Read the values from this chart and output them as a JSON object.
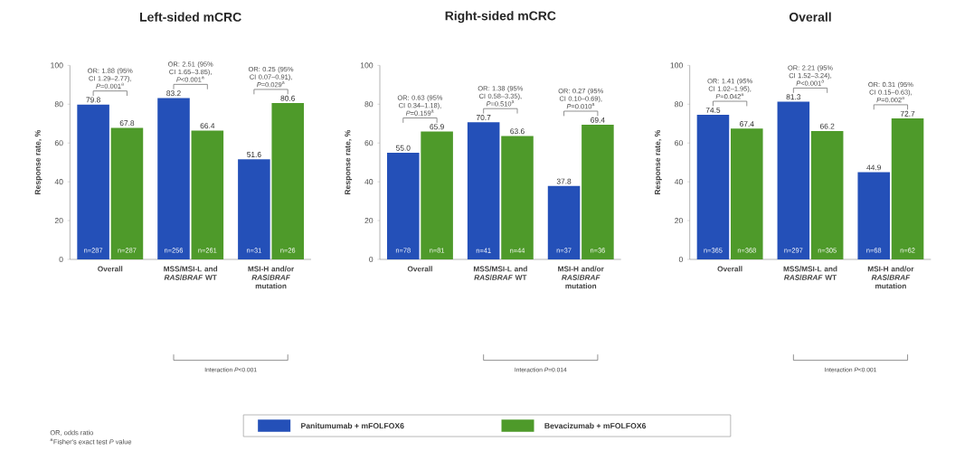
{
  "chart_data": [
    {
      "type": "bar",
      "title": "Left-sided mCRC",
      "ylabel": "Response rate, %",
      "categories": [
        "Overall",
        "MSS/MSI-L and *RAS*/*BRAF* WT",
        "MSI-H and/or *RAS*/*BRAF* mutation"
      ],
      "series": [
        {
          "color": "#2450b8",
          "values": [
            79.8,
            83.2,
            51.6
          ]
        },
        {
          "color": "#4e9a2a",
          "values": [
            67.8,
            66.4,
            80.6
          ]
        }
      ],
      "ylim": [
        0,
        100
      ],
      "yticks": [
        0,
        20,
        40,
        60,
        80,
        100
      ],
      "data_labels": true,
      "annotations": [
        "OR: 1.88 (95% CI 1.29–2.77), *P*=0.001$^{a}$",
        "OR: 2.51 (95% CI 1.65–3.85), *P*<0.001$^{a}$",
        "OR: 0.25 (95% CI 0.07–0.91), *P*=0.029$^{a}$",
        "Interaction *P*<0.001",
        "OR, odds ratio",
        "$^{a}$Fisher's exact test *P* value",
        {
          "text": "n=287",
          "x": "Overall",
          "y": 3
        },
        {
          "text": "n=287",
          "x": "Overall",
          "y": 3
        },
        {
          "text": "n=256",
          "x": "MSS/MSI-L and *RAS*/*BRAF* WT",
          "y": 3
        },
        {
          "text": "n=261",
          "x": "MSS/MSI-L and *RAS*/*BRAF* WT",
          "y": 3
        },
        {
          "text": "n=31",
          "x": "MSI-H and/or *RAS*/*BRAF* mutation",
          "y": 3
        },
        {
          "text": "n=26",
          "x": "MSI-H and/or *RAS*/*BRAF* mutation",
          "y": 3
        }
      ]
    },
    {
      "type": "bar",
      "title": "Right-sided mCRC",
      "ylabel": "Response rate, %",
      "categories": [
        "Overall",
        "MSS/MSI-L and *RAS*/*BRAF* WT",
        "MSI-H and/or *RAS*/*BRAF* mutation"
      ],
      "series": [
        {
          "name": "Panitumumab + mFOLFOX6",
          "color": "#2450b8",
          "values": [
            55.0,
            70.7,
            37.8
          ],
          "value_labels": [
            "55.0",
            "70.7",
            "37.8"
          ]
        },
        {
          "name": "Bevacizumab + mFOLFOX6",
          "color": "#4e9a2a",
          "values": [
            65.9,
            63.6,
            69.4
          ],
          "value_labels": [
            "65.9",
            "63.6",
            "69.4"
          ]
        }
      ],
      "ylim": [
        0,
        100
      ],
      "yticks": [
        0,
        20,
        40,
        60,
        80,
        100
      ],
      "legend": "bottom",
      "annotations": [
        "OR: 0.63 (95% CI 0.34–1.18), *P*=0.159$^{a}$",
        "OR: 1.38 (95% CI 0.58–3.35), *P*=0.510$^{a}$",
        "OR: 0.27 (95% CI 0.10–0.69), *P*=0.010$^{a}$",
        "Interaction *P*=0.014",
        {
          "text": "n=78",
          "x": "Overall",
          "y": 3
        },
        {
          "text": "n=81",
          "x": "Overall",
          "y": 3
        },
        {
          "text": "n=41",
          "x": "MSS/MSI-L and *RAS*/*BRAF* WT",
          "y": 3
        },
        {
          "text": "n=44",
          "x": "MSS/MSI-L and *RAS*/*BRAF* WT",
          "y": 3
        },
        {
          "text": "n=37",
          "x": "MSI-H and/or *RAS*/*BRAF* mutation",
          "y": 3
        },
        {
          "text": "n=36",
          "x": "MSI-H and/or *RAS*/*BRAF* mutation",
          "y": 3
        }
      ]
    },
    {
      "type": "bar",
      "title": "Overall",
      "ylabel": "Response rate, %",
      "categories": [
        "Overall",
        "MSS/MSI-L and *RAS*/*BRAF* WT",
        "MSI-H and/or *RAS*/*BRAF* mutation"
      ],
      "series": [
        {
          "color": "#2450b8",
          "values": [
            74.5,
            81.3,
            44.9
          ]
        },
        {
          "color": "#4e9a2a",
          "values": [
            67.4,
            66.2,
            72.7
          ]
        }
      ],
      "ylim": [
        0,
        100
      ],
      "yticks": [
        0,
        20,
        40,
        60,
        80,
        100
      ],
      "data_labels": true,
      "annotations": [
        "OR: 1.41 (95% CI 1.02–1.95), *P*=0.042$^{a}$",
        "OR: 2.21 (95% CI 1.52–3.24), *P*<0.001$^{a}$",
        "OR: 0.31 (95% CI 0.15–0.63), *P*=0.002$^{a}$",
        "Interaction *P*<0.001",
        {
          "text": "n=365",
          "x": "Overall",
          "y": 3
        },
        {
          "text": "n=368",
          "x": "Overall",
          "y": 3
        },
        {
          "text": "n=297",
          "x": "MSS/MSI-L and *RAS*/*BRAF* WT",
          "y": 3
        },
        {
          "text": "n=305",
          "x": "MSS/MSI-L and *RAS*/*BRAF* WT",
          "y": 3
        },
        {
          "text": "n=68",
          "x": "MSI-H and/or *RAS*/*BRAF* mutation",
          "y": 3
        },
        {
          "text": "n=62",
          "x": "MSI-H and/or *RAS*/*BRAF* mutation",
          "y": 3
        }
      ]
    }
  ]
}
